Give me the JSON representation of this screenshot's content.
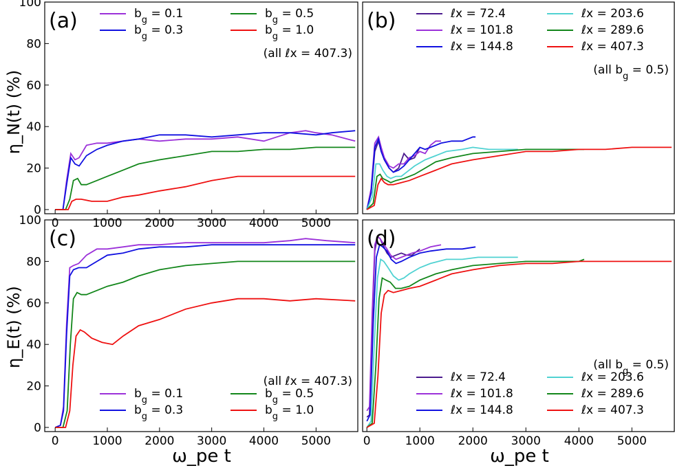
{
  "figure": {
    "ylabel_top": "η_N(t) (%)",
    "ylabel_bottom": "η_E(t) (%)",
    "xlabel": "ω_pe t"
  },
  "chart_data": [
    {
      "panel": "(a)",
      "type": "line",
      "note": "(all ℓx = 407.3)",
      "xlim": [
        -200,
        5800
      ],
      "ylim": [
        -2,
        100
      ],
      "xticks": [
        0,
        1000,
        2000,
        3000,
        4000,
        5000
      ],
      "yticks": [
        0,
        20,
        40,
        60,
        80,
        100
      ],
      "legend": "top-right",
      "series": [
        {
          "name": "b_g = 0.1",
          "color": "#9b30d9",
          "x": [
            0,
            150,
            220,
            300,
            380,
            460,
            600,
            800,
            1000,
            1300,
            1600,
            2000,
            2500,
            3000,
            3500,
            4000,
            4500,
            4800,
            5000,
            5300,
            5750
          ],
          "y": [
            0,
            0,
            14,
            27,
            24,
            25,
            31,
            32,
            32,
            33,
            34,
            33,
            34,
            34,
            35,
            33,
            37,
            38,
            37,
            36,
            33
          ]
        },
        {
          "name": "b_g = 0.3",
          "color": "#1010e0",
          "x": [
            0,
            150,
            220,
            300,
            380,
            460,
            600,
            800,
            1000,
            1300,
            1600,
            2000,
            2500,
            3000,
            3500,
            4000,
            4500,
            5000,
            5300,
            5750
          ],
          "y": [
            0,
            0,
            12,
            25,
            22,
            21,
            26,
            29,
            31,
            33,
            34,
            36,
            36,
            35,
            36,
            37,
            37,
            36,
            37,
            38
          ]
        },
        {
          "name": "b_g = 0.5",
          "color": "#12861a",
          "x": [
            0,
            200,
            280,
            350,
            430,
            500,
            600,
            800,
            1000,
            1300,
            1600,
            2000,
            2500,
            3000,
            3500,
            4000,
            4500,
            5000,
            5750
          ],
          "y": [
            0,
            0,
            5,
            14,
            15,
            12,
            12,
            14,
            16,
            19,
            22,
            24,
            26,
            28,
            28,
            29,
            29,
            30,
            30
          ]
        },
        {
          "name": "b_g = 1.0",
          "color": "#ee1010",
          "x": [
            0,
            250,
            320,
            400,
            500,
            700,
            1000,
            1300,
            1600,
            2000,
            2500,
            3000,
            3500,
            4000,
            4500,
            5000,
            5750
          ],
          "y": [
            0,
            0,
            4,
            5,
            5,
            4,
            4,
            6,
            7,
            9,
            11,
            14,
            16,
            16,
            16,
            16,
            16
          ]
        }
      ]
    },
    {
      "panel": "(b)",
      "type": "line",
      "note": "(all b_g = 0.5)",
      "xlim": [
        -80,
        5800
      ],
      "ylim": [
        -2,
        100
      ],
      "xticks": [],
      "yticks": [],
      "legend": "top-right",
      "series": [
        {
          "name": "ℓx = 72.4",
          "color": "#4b1a8e",
          "x": [
            0,
            80,
            150,
            220,
            270,
            330,
            420,
            500,
            600,
            700,
            800,
            900,
            1000
          ],
          "y": [
            0,
            8,
            28,
            33,
            28,
            24,
            20,
            18,
            20,
            27,
            24,
            25,
            30
          ]
        },
        {
          "name": "ℓx = 101.8",
          "color": "#9b30d9",
          "x": [
            0,
            80,
            150,
            220,
            270,
            330,
            420,
            500,
            600,
            700,
            800,
            900,
            1000,
            1100,
            1200,
            1300,
            1400
          ],
          "y": [
            0,
            10,
            32,
            35,
            30,
            25,
            21,
            20,
            22,
            22,
            25,
            26,
            28,
            27,
            31,
            33,
            33
          ]
        },
        {
          "name": "ℓx = 144.8",
          "color": "#1010e0",
          "x": [
            0,
            80,
            150,
            220,
            270,
            330,
            420,
            500,
            600,
            700,
            800,
            900,
            1000,
            1100,
            1200,
            1400,
            1600,
            1800,
            2000,
            2050
          ],
          "y": [
            0,
            8,
            30,
            34,
            28,
            24,
            20,
            18,
            19,
            21,
            24,
            27,
            30,
            29,
            30,
            32,
            33,
            33,
            35,
            35
          ]
        },
        {
          "name": "ℓx = 203.6",
          "color": "#4fd2d2",
          "x": [
            0,
            100,
            170,
            240,
            300,
            380,
            450,
            550,
            650,
            750,
            900,
            1100,
            1300,
            1500,
            1800,
            2000,
            2300,
            2500,
            2700,
            2850
          ],
          "y": [
            0,
            6,
            22,
            22,
            19,
            16,
            15,
            16,
            16,
            18,
            21,
            24,
            26,
            28,
            29,
            30,
            29,
            29,
            29,
            29
          ]
        },
        {
          "name": "ℓx = 289.6",
          "color": "#12861a",
          "x": [
            0,
            120,
            190,
            250,
            300,
            380,
            450,
            550,
            700,
            900,
            1100,
            1300,
            1600,
            2000,
            2500,
            3000,
            3500,
            4000,
            4100
          ],
          "y": [
            0,
            3,
            16,
            17,
            15,
            14,
            13,
            14,
            15,
            17,
            20,
            23,
            25,
            27,
            28,
            29,
            29,
            29,
            29
          ]
        },
        {
          "name": "ℓx = 407.3",
          "color": "#ee1010",
          "x": [
            0,
            140,
            210,
            270,
            330,
            400,
            500,
            650,
            800,
            1000,
            1300,
            1600,
            2000,
            2500,
            3000,
            3500,
            4000,
            4500,
            5000,
            5500,
            5750
          ],
          "y": [
            0,
            2,
            12,
            15,
            13,
            12,
            12,
            13,
            14,
            16,
            19,
            22,
            24,
            26,
            28,
            28,
            29,
            29,
            30,
            30,
            30
          ]
        }
      ]
    },
    {
      "panel": "(c)",
      "type": "line",
      "note": "(all ℓx = 407.3)",
      "xlim": [
        -200,
        5800
      ],
      "ylim": [
        -2,
        100
      ],
      "xticks": [
        0,
        1000,
        2000,
        3000,
        4000,
        5000
      ],
      "yticks": [
        0,
        20,
        40,
        60,
        80,
        100
      ],
      "legend": "bottom-right",
      "series": [
        {
          "name": "b_g = 0.1",
          "color": "#9b30d9",
          "x": [
            0,
            100,
            160,
            220,
            280,
            350,
            450,
            600,
            800,
            1000,
            1300,
            1600,
            2000,
            2500,
            3000,
            3500,
            4000,
            4500,
            4800,
            5200,
            5750
          ],
          "y": [
            0,
            1,
            10,
            50,
            77,
            78,
            79,
            83,
            86,
            86,
            87,
            88,
            88,
            89,
            89,
            89,
            89,
            90,
            91,
            90,
            89
          ]
        },
        {
          "name": "b_g = 0.3",
          "color": "#1010e0",
          "x": [
            0,
            100,
            160,
            220,
            280,
            350,
            450,
            600,
            800,
            1000,
            1300,
            1600,
            2000,
            2500,
            3000,
            3500,
            4000,
            4500,
            5000,
            5750
          ],
          "y": [
            0,
            1,
            8,
            45,
            73,
            76,
            77,
            77,
            80,
            83,
            84,
            86,
            87,
            87,
            88,
            88,
            88,
            88,
            88,
            88
          ]
        },
        {
          "name": "b_g = 0.5",
          "color": "#12861a",
          "x": [
            0,
            150,
            230,
            290,
            350,
            420,
            500,
            600,
            800,
            1000,
            1300,
            1600,
            2000,
            2500,
            3000,
            3500,
            4000,
            4500,
            5000,
            5750
          ],
          "y": [
            0,
            0,
            8,
            40,
            62,
            65,
            64,
            64,
            66,
            68,
            70,
            73,
            76,
            78,
            79,
            80,
            80,
            80,
            80,
            80
          ]
        },
        {
          "name": "b_g = 1.0",
          "color": "#ee1010",
          "x": [
            0,
            200,
            280,
            340,
            400,
            480,
            560,
            700,
            900,
            1100,
            1300,
            1600,
            2000,
            2500,
            3000,
            3500,
            4000,
            4500,
            5000,
            5750
          ],
          "y": [
            0,
            0,
            8,
            30,
            44,
            47,
            46,
            43,
            41,
            40,
            44,
            49,
            52,
            57,
            60,
            62,
            62,
            61,
            62,
            61
          ]
        }
      ]
    },
    {
      "panel": "(d)",
      "type": "line",
      "note": "(all b_g = 0.5)",
      "xlim": [
        -80,
        5800
      ],
      "ylim": [
        -2,
        100
      ],
      "xticks": [
        0,
        1000,
        2000,
        3000,
        4000,
        5000
      ],
      "yticks": [],
      "legend": "bottom-right",
      "series": [
        {
          "name": "ℓx = 72.4",
          "color": "#4b1a8e",
          "x": [
            0,
            50,
            100,
            150,
            200,
            250,
            300,
            380,
            450,
            550,
            650,
            750,
            850,
            950,
            1000
          ],
          "y": [
            5,
            6,
            50,
            85,
            92,
            91,
            88,
            84,
            82,
            83,
            84,
            83,
            83,
            85,
            86
          ]
        },
        {
          "name": "ℓx = 101.8",
          "color": "#9b30d9",
          "x": [
            0,
            50,
            100,
            150,
            200,
            250,
            300,
            380,
            450,
            550,
            650,
            750,
            850,
            1000,
            1200,
            1400
          ],
          "y": [
            8,
            10,
            55,
            88,
            92,
            91,
            89,
            86,
            83,
            81,
            82,
            83,
            84,
            85,
            87,
            88
          ]
        },
        {
          "name": "ℓx = 144.8",
          "color": "#1010e0",
          "x": [
            0,
            60,
            120,
            180,
            240,
            300,
            380,
            460,
            550,
            650,
            800,
            1000,
            1200,
            1500,
            1800,
            2050
          ],
          "y": [
            3,
            6,
            50,
            82,
            88,
            87,
            85,
            81,
            79,
            80,
            82,
            84,
            85,
            86,
            86,
            87
          ]
        },
        {
          "name": "ℓx = 203.6",
          "color": "#4fd2d2",
          "x": [
            0,
            80,
            140,
            200,
            260,
            320,
            400,
            500,
            600,
            700,
            800,
            1000,
            1200,
            1500,
            1800,
            2100,
            2400,
            2700,
            2850
          ],
          "y": [
            0,
            3,
            40,
            72,
            81,
            80,
            77,
            73,
            71,
            72,
            74,
            77,
            79,
            81,
            81,
            82,
            82,
            82,
            82
          ]
        },
        {
          "name": "ℓx = 289.6",
          "color": "#12861a",
          "x": [
            0,
            100,
            170,
            230,
            290,
            360,
            440,
            540,
            650,
            800,
            1000,
            1300,
            1600,
            2000,
            2500,
            3000,
            3500,
            4000,
            4100
          ],
          "y": [
            0,
            2,
            30,
            62,
            72,
            71,
            70,
            67,
            67,
            68,
            71,
            74,
            76,
            78,
            79,
            80,
            80,
            80,
            81
          ]
        },
        {
          "name": "ℓx = 407.3",
          "color": "#ee1010",
          "x": [
            0,
            140,
            210,
            270,
            330,
            400,
            500,
            650,
            800,
            1000,
            1300,
            1600,
            2000,
            2500,
            3000,
            3500,
            4000,
            4500,
            5000,
            5500,
            5750
          ],
          "y": [
            0,
            2,
            25,
            55,
            64,
            66,
            65,
            66,
            67,
            68,
            71,
            74,
            76,
            78,
            79,
            79,
            80,
            80,
            80,
            80,
            80
          ]
        }
      ]
    }
  ]
}
